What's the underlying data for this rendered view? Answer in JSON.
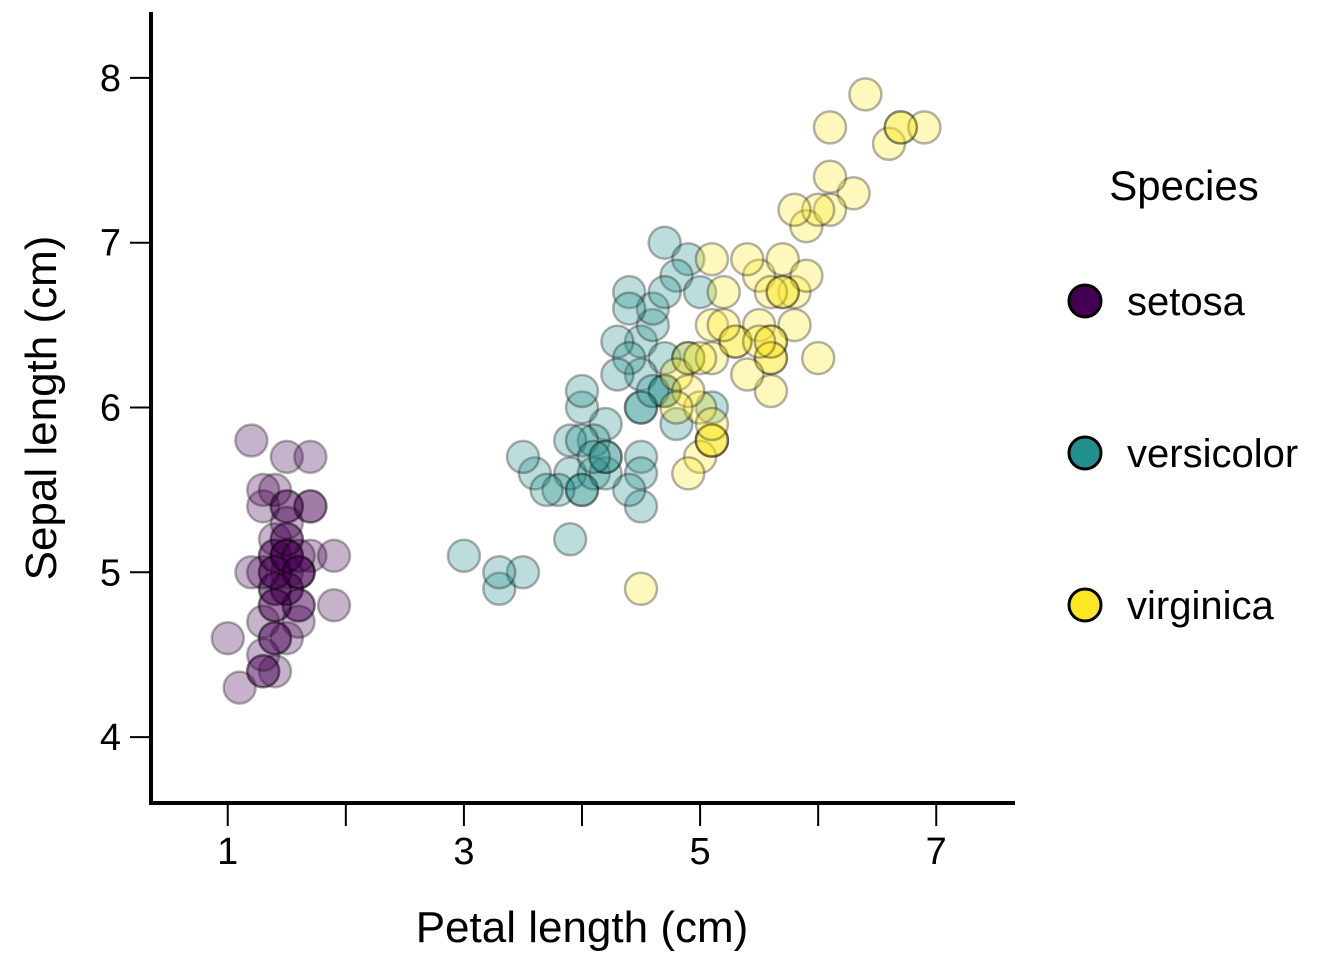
{
  "chart_data": {
    "type": "scatter",
    "xlabel": "Petal length (cm)",
    "ylabel": "Sepal length (cm)",
    "xlim": [
      0.35,
      7.65
    ],
    "ylim": [
      3.6,
      8.4
    ],
    "x_ticks": [
      1,
      2,
      3,
      4,
      5,
      6,
      7
    ],
    "x_tick_labels": [
      "1",
      "",
      "3",
      "",
      "5",
      "",
      "7"
    ],
    "y_ticks": [
      4,
      5,
      6,
      7,
      8
    ],
    "y_tick_labels": [
      "4",
      "5",
      "6",
      "7",
      "8"
    ],
    "grid": false,
    "legend": {
      "title": "Species",
      "position": "right"
    },
    "point_opacity": 0.3,
    "series": [
      {
        "name": "setosa",
        "color": "#440154",
        "points": [
          [
            1.4,
            5.1
          ],
          [
            1.4,
            4.9
          ],
          [
            1.3,
            4.7
          ],
          [
            1.5,
            4.6
          ],
          [
            1.4,
            5.0
          ],
          [
            1.7,
            5.4
          ],
          [
            1.4,
            4.6
          ],
          [
            1.5,
            5.0
          ],
          [
            1.4,
            4.4
          ],
          [
            1.5,
            4.9
          ],
          [
            1.5,
            5.4
          ],
          [
            1.6,
            4.8
          ],
          [
            1.4,
            4.8
          ],
          [
            1.1,
            4.3
          ],
          [
            1.2,
            5.8
          ],
          [
            1.5,
            5.7
          ],
          [
            1.3,
            5.4
          ],
          [
            1.4,
            5.1
          ],
          [
            1.7,
            5.7
          ],
          [
            1.5,
            5.1
          ],
          [
            1.7,
            5.4
          ],
          [
            1.5,
            5.1
          ],
          [
            1.0,
            4.6
          ],
          [
            1.7,
            5.1
          ],
          [
            1.9,
            4.8
          ],
          [
            1.6,
            5.0
          ],
          [
            1.6,
            5.0
          ],
          [
            1.5,
            5.2
          ],
          [
            1.4,
            5.2
          ],
          [
            1.6,
            4.7
          ],
          [
            1.6,
            4.8
          ],
          [
            1.5,
            5.4
          ],
          [
            1.5,
            5.2
          ],
          [
            1.4,
            5.5
          ],
          [
            1.5,
            4.9
          ],
          [
            1.2,
            5.0
          ],
          [
            1.3,
            5.5
          ],
          [
            1.4,
            4.9
          ],
          [
            1.3,
            4.4
          ],
          [
            1.5,
            5.1
          ],
          [
            1.3,
            5.0
          ],
          [
            1.3,
            4.5
          ],
          [
            1.3,
            4.4
          ],
          [
            1.6,
            5.0
          ],
          [
            1.9,
            5.1
          ],
          [
            1.4,
            4.8
          ],
          [
            1.6,
            5.1
          ],
          [
            1.4,
            4.6
          ],
          [
            1.5,
            5.3
          ],
          [
            1.4,
            5.0
          ]
        ]
      },
      {
        "name": "versicolor",
        "color": "#21908C",
        "points": [
          [
            4.7,
            7.0
          ],
          [
            4.5,
            6.4
          ],
          [
            4.9,
            6.9
          ],
          [
            4.0,
            5.5
          ],
          [
            4.6,
            6.5
          ],
          [
            4.5,
            5.7
          ],
          [
            4.7,
            6.3
          ],
          [
            3.3,
            4.9
          ],
          [
            4.6,
            6.6
          ],
          [
            3.9,
            5.2
          ],
          [
            3.5,
            5.0
          ],
          [
            4.2,
            5.9
          ],
          [
            4.0,
            6.0
          ],
          [
            4.7,
            6.1
          ],
          [
            3.6,
            5.6
          ],
          [
            4.4,
            6.7
          ],
          [
            4.5,
            5.6
          ],
          [
            4.1,
            5.8
          ],
          [
            4.5,
            6.2
          ],
          [
            3.9,
            5.6
          ],
          [
            4.8,
            5.9
          ],
          [
            4.0,
            6.1
          ],
          [
            4.9,
            6.3
          ],
          [
            4.7,
            6.1
          ],
          [
            4.3,
            6.4
          ],
          [
            4.4,
            6.6
          ],
          [
            4.8,
            6.8
          ],
          [
            5.0,
            6.7
          ],
          [
            4.5,
            6.0
          ],
          [
            3.5,
            5.7
          ],
          [
            3.8,
            5.5
          ],
          [
            3.7,
            5.5
          ],
          [
            3.9,
            5.8
          ],
          [
            5.1,
            6.0
          ],
          [
            4.5,
            5.4
          ],
          [
            4.5,
            6.0
          ],
          [
            4.7,
            6.7
          ],
          [
            4.4,
            6.3
          ],
          [
            4.1,
            5.6
          ],
          [
            4.0,
            5.5
          ],
          [
            4.4,
            5.5
          ],
          [
            4.6,
            6.1
          ],
          [
            4.0,
            5.8
          ],
          [
            3.3,
            5.0
          ],
          [
            4.2,
            5.6
          ],
          [
            4.2,
            5.7
          ],
          [
            4.2,
            5.7
          ],
          [
            4.3,
            6.2
          ],
          [
            3.0,
            5.1
          ],
          [
            4.1,
            5.7
          ]
        ]
      },
      {
        "name": "virginica",
        "color": "#FDE725",
        "points": [
          [
            6.0,
            6.3
          ],
          [
            5.1,
            5.8
          ],
          [
            5.9,
            7.1
          ],
          [
            5.6,
            6.3
          ],
          [
            5.8,
            6.5
          ],
          [
            6.6,
            7.6
          ],
          [
            4.5,
            4.9
          ],
          [
            6.3,
            7.3
          ],
          [
            5.8,
            6.7
          ],
          [
            6.1,
            7.2
          ],
          [
            5.1,
            6.5
          ],
          [
            5.3,
            6.4
          ],
          [
            5.5,
            6.8
          ],
          [
            5.0,
            5.7
          ],
          [
            5.1,
            5.8
          ],
          [
            5.3,
            6.4
          ],
          [
            5.5,
            6.5
          ],
          [
            6.7,
            7.7
          ],
          [
            6.9,
            7.7
          ],
          [
            5.0,
            6.0
          ],
          [
            5.7,
            6.9
          ],
          [
            4.9,
            5.6
          ],
          [
            6.7,
            7.7
          ],
          [
            4.9,
            6.3
          ],
          [
            5.7,
            6.7
          ],
          [
            6.0,
            7.2
          ],
          [
            4.8,
            6.2
          ],
          [
            4.9,
            6.1
          ],
          [
            5.6,
            6.4
          ],
          [
            5.8,
            7.2
          ],
          [
            6.1,
            7.4
          ],
          [
            6.4,
            7.9
          ],
          [
            5.6,
            6.4
          ],
          [
            5.1,
            6.3
          ],
          [
            5.6,
            6.1
          ],
          [
            6.1,
            7.7
          ],
          [
            5.6,
            6.3
          ],
          [
            5.5,
            6.4
          ],
          [
            4.8,
            6.0
          ],
          [
            5.4,
            6.9
          ],
          [
            5.6,
            6.7
          ],
          [
            5.1,
            6.9
          ],
          [
            5.1,
            5.8
          ],
          [
            5.9,
            6.8
          ],
          [
            5.7,
            6.7
          ],
          [
            5.2,
            6.7
          ],
          [
            5.0,
            6.3
          ],
          [
            5.2,
            6.5
          ],
          [
            5.4,
            6.2
          ],
          [
            5.1,
            5.9
          ]
        ]
      }
    ]
  }
}
